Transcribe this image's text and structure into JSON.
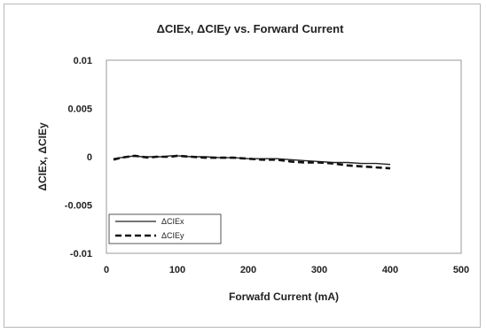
{
  "chart_data": {
    "type": "line",
    "title": "ΔCIEx, ΔCIEy vs. Forward Current",
    "xlabel": "Forwafd Current (mA)",
    "ylabel": "ΔCIEx, ΔCIEy",
    "xlim": [
      0,
      500
    ],
    "ylim": [
      -0.01,
      0.01
    ],
    "x_ticks": [
      0,
      100,
      200,
      300,
      400,
      500
    ],
    "y_ticks": [
      0.01,
      0.005,
      0,
      -0.005,
      -0.01
    ],
    "x_tick_labels": [
      "0",
      "100",
      "200",
      "300",
      "400",
      "500"
    ],
    "y_tick_labels": [
      "0.01",
      "0.005",
      "0",
      "-0.005",
      "-0.01"
    ],
    "grid": false,
    "legend_position": "bottom-left",
    "series": [
      {
        "name": "ΔCIEx",
        "style": "solid",
        "color": "#222222",
        "x": [
          10,
          20,
          30,
          40,
          50,
          60,
          70,
          80,
          90,
          100,
          120,
          140,
          160,
          180,
          200,
          220,
          240,
          260,
          280,
          300,
          320,
          340,
          360,
          380,
          400
        ],
        "y": [
          -0.0002,
          -0.0001,
          0.0,
          0.0001,
          0.0,
          0.0,
          0.0,
          0.0,
          0.0001,
          0.0001,
          0.0,
          0.0,
          -0.0001,
          -0.0001,
          -0.0002,
          -0.0002,
          -0.0002,
          -0.0003,
          -0.0004,
          -0.0005,
          -0.0006,
          -0.0006,
          -0.0007,
          -0.0007,
          -0.0008
        ]
      },
      {
        "name": "ΔCIEy",
        "style": "dashed",
        "color": "#111111",
        "x": [
          10,
          20,
          30,
          40,
          50,
          60,
          70,
          80,
          90,
          100,
          120,
          140,
          160,
          180,
          200,
          220,
          240,
          260,
          280,
          300,
          320,
          340,
          360,
          380,
          400
        ],
        "y": [
          -0.0003,
          -0.0001,
          0.0,
          0.0001,
          0.0,
          -0.0001,
          0.0,
          0.0,
          0.0,
          0.0001,
          0.0,
          -0.0001,
          -0.0001,
          -0.0001,
          -0.0002,
          -0.0003,
          -0.0003,
          -0.0005,
          -0.0006,
          -0.0006,
          -0.0007,
          -0.0009,
          -0.001,
          -0.0011,
          -0.0012
        ]
      }
    ]
  }
}
